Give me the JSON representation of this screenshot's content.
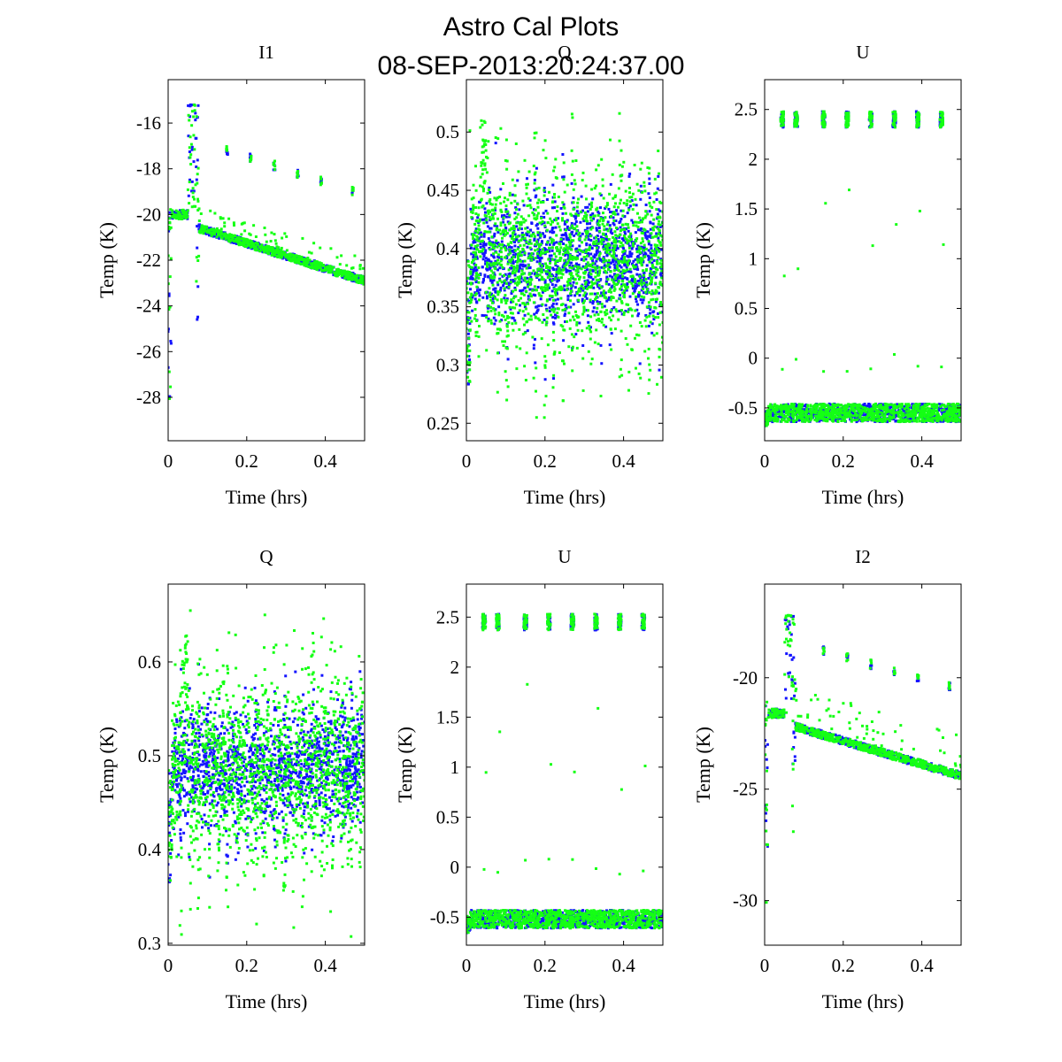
{
  "figure": {
    "title_line1": "Astro Cal Plots",
    "title_line2": "08-SEP-2013:20:24:37.00"
  },
  "colors": {
    "series_blue": "#1414ff",
    "series_green": "#14ff14",
    "axes": "#000000"
  },
  "chart_data": [
    {
      "type": "scatter",
      "panel": "top-left",
      "title": "I1",
      "xlabel": "Time (hrs)",
      "ylabel": "Temp (K)",
      "xlim": [
        0,
        0.5
      ],
      "ylim": [
        -29.9,
        -14.1
      ],
      "xticks": [
        0,
        0.2,
        0.4
      ],
      "xtick_labels": [
        "0",
        "0.2",
        "0.4"
      ],
      "yticks": [
        -28,
        -26,
        -24,
        -22,
        -20,
        -18,
        -16
      ],
      "ytick_labels": [
        "-28",
        "-26",
        "-24",
        "-22",
        "-20",
        "-18",
        "-16"
      ],
      "profile": "I",
      "params": {
        "start": -19.6,
        "plateau": -20.0,
        "peak": -15.2,
        "dip_green": -25.8,
        "min": -28.5,
        "line_start": -20.6,
        "line_end": -22.9,
        "cal_offset": 1.0,
        "cal_top": -17.2,
        "cal_slope": -5.5
      },
      "series": [
        {
          "name": "blue",
          "color": "#1414ff"
        },
        {
          "name": "green",
          "color": "#14ff14"
        }
      ]
    },
    {
      "type": "scatter",
      "panel": "top-middle",
      "title": "Q",
      "xlabel": "Time (hrs)",
      "ylabel": "Temp (K)",
      "xlim": [
        0,
        0.5
      ],
      "ylim": [
        0.235,
        0.545
      ],
      "xticks": [
        0,
        0.2,
        0.4
      ],
      "xtick_labels": [
        "0",
        "0.2",
        "0.4"
      ],
      "yticks": [
        0.25,
        0.3,
        0.35,
        0.4,
        0.45,
        0.5
      ],
      "ytick_labels": [
        "0.25",
        "0.3",
        "0.35",
        "0.4",
        "0.45",
        "0.5"
      ],
      "profile": "Q",
      "params": {
        "center": 0.39,
        "spread_blue": 0.045,
        "spread_green": 0.065,
        "low": 0.27,
        "high": 0.51
      },
      "series": [
        {
          "name": "blue",
          "color": "#1414ff"
        },
        {
          "name": "green",
          "color": "#14ff14"
        }
      ]
    },
    {
      "type": "scatter",
      "panel": "top-right",
      "title": "U",
      "xlabel": "Time (hrs)",
      "ylabel": "Temp (K)",
      "xlim": [
        0,
        0.5
      ],
      "ylim": [
        -0.83,
        2.8
      ],
      "xticks": [
        0,
        0.2,
        0.4
      ],
      "xtick_labels": [
        "0",
        "0.2",
        "0.4"
      ],
      "yticks": [
        -0.5,
        0,
        0.5,
        1,
        1.5,
        2,
        2.5
      ],
      "ytick_labels": [
        "-0.5",
        "0",
        "0.5",
        "1",
        "1.5",
        "2",
        "2.5"
      ],
      "profile": "U",
      "params": {
        "base": -0.55,
        "cal": 2.4,
        "cal_times": [
          0.045,
          0.08,
          0.15,
          0.21,
          0.27,
          0.33,
          0.39,
          0.45
        ]
      },
      "series": [
        {
          "name": "blue",
          "color": "#1414ff"
        },
        {
          "name": "green",
          "color": "#14ff14"
        }
      ]
    },
    {
      "type": "scatter",
      "panel": "bottom-left",
      "title": "Q",
      "xlabel": "Time (hrs)",
      "ylabel": "Temp (K)",
      "xlim": [
        0,
        0.5
      ],
      "ylim": [
        0.298,
        0.683
      ],
      "xticks": [
        0,
        0.2,
        0.4
      ],
      "xtick_labels": [
        "0",
        "0.2",
        "0.4"
      ],
      "yticks": [
        0.3,
        0.4,
        0.5,
        0.6
      ],
      "ytick_labels": [
        "0.3",
        "0.4",
        "0.5",
        "0.6"
      ],
      "profile": "Q",
      "params": {
        "center": 0.485,
        "spread_blue": 0.055,
        "spread_green": 0.085,
        "low": 0.35,
        "high": 0.63
      },
      "series": [
        {
          "name": "blue",
          "color": "#1414ff"
        },
        {
          "name": "green",
          "color": "#14ff14"
        }
      ]
    },
    {
      "type": "scatter",
      "panel": "bottom-middle",
      "title": "U",
      "xlabel": "Time (hrs)",
      "ylabel": "Temp (K)",
      "xlim": [
        0,
        0.5
      ],
      "ylim": [
        -0.78,
        2.83
      ],
      "xticks": [
        0,
        0.2,
        0.4
      ],
      "xtick_labels": [
        "0",
        "0.2",
        "0.4"
      ],
      "yticks": [
        -0.5,
        0,
        0.5,
        1,
        1.5,
        2,
        2.5
      ],
      "ytick_labels": [
        "-0.5",
        "0",
        "0.5",
        "1",
        "1.5",
        "2",
        "2.5"
      ],
      "profile": "U",
      "params": {
        "base": -0.52,
        "cal": 2.45,
        "cal_times": [
          0.045,
          0.08,
          0.15,
          0.21,
          0.27,
          0.33,
          0.39,
          0.45
        ]
      },
      "series": [
        {
          "name": "blue",
          "color": "#1414ff"
        },
        {
          "name": "green",
          "color": "#14ff14"
        }
      ]
    },
    {
      "type": "scatter",
      "panel": "bottom-right",
      "title": "I2",
      "xlabel": "Time (hrs)",
      "ylabel": "Temp (K)",
      "xlim": [
        0,
        0.5
      ],
      "ylim": [
        -32.0,
        -15.8
      ],
      "xticks": [
        0,
        0.2,
        0.4
      ],
      "xtick_labels": [
        "0",
        "0.2",
        "0.4"
      ],
      "yticks": [
        -30,
        -25,
        -20
      ],
      "ytick_labels": [
        "-30",
        "-25",
        "-20"
      ],
      "profile": "I",
      "params": {
        "start": -21.0,
        "plateau": -21.6,
        "peak": -17.2,
        "dip_green": -27.2,
        "min": -30.3,
        "line_start": -22.2,
        "line_end": -24.4,
        "cal_offset": 1.8,
        "cal_top": -18.8,
        "cal_slope": -5.0
      },
      "series": [
        {
          "name": "blue",
          "color": "#1414ff"
        },
        {
          "name": "green",
          "color": "#14ff14"
        }
      ]
    }
  ]
}
